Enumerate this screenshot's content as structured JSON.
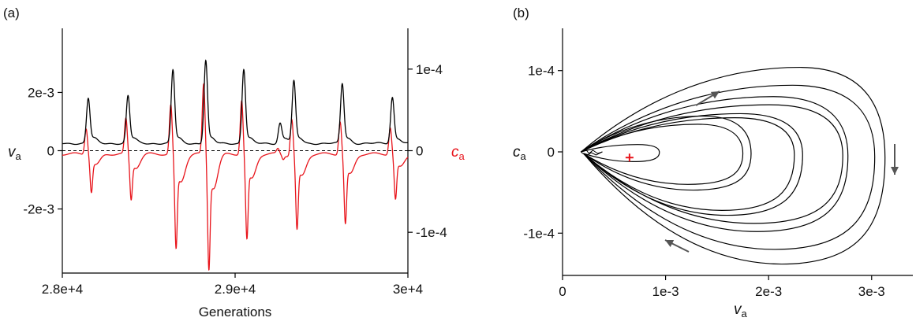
{
  "chart_data": [
    {
      "type": "line",
      "panel_label": "(a)",
      "xlabel": "Generations",
      "ylabel_left": {
        "symbol": "v",
        "subscript": "a"
      },
      "ylabel_right": {
        "symbol": "c",
        "subscript": "a"
      },
      "xlim": [
        28000,
        30000
      ],
      "ylim_left": [
        -0.0042,
        0.0042
      ],
      "ylim_right": [
        -0.00015,
        0.00015
      ],
      "x_ticks": [
        {
          "value": 28000,
          "label": "2.8e+4"
        },
        {
          "value": 29000,
          "label": "2.9e+4"
        },
        {
          "value": 30000,
          "label": "3e+4"
        }
      ],
      "y_ticks_left": [
        {
          "value": 0.002,
          "label": "2e-3"
        },
        {
          "value": 0,
          "label": "0"
        },
        {
          "value": -0.002,
          "label": "-2e-3"
        }
      ],
      "y_ticks_right": [
        {
          "value": 0.0001,
          "label": "1e-4"
        },
        {
          "value": 0,
          "label": "0"
        },
        {
          "value": -0.0001,
          "label": "-1e-4"
        }
      ],
      "zero_line": "dashed",
      "series_colors": {
        "v_a": "#000000",
        "c_a": "#e8141b"
      },
      "baseline_v": 0.00025,
      "peaks": [
        {
          "x": 28150,
          "v": 0.00175,
          "c_pos": 3.3e-05,
          "c_neg": -3.9e-05
        },
        {
          "x": 28380,
          "v": 0.00183,
          "c_pos": 4.4e-05,
          "c_neg": -4.7e-05
        },
        {
          "x": 28640,
          "v": 0.00272,
          "c_pos": 6.2e-05,
          "c_neg": -9.8e-05
        },
        {
          "x": 28830,
          "v": 0.00305,
          "c_pos": 8.8e-05,
          "c_neg": -0.000118
        },
        {
          "x": 29050,
          "v": 0.00275,
          "c_pos": 6.8e-05,
          "c_neg": -8.8e-05
        },
        {
          "x": 29260,
          "v": 0.0009,
          "c_pos": 6e-06,
          "c_neg": -5e-06
        },
        {
          "x": 29340,
          "v": 0.00232,
          "c_pos": 4.6e-05,
          "c_neg": -7.8e-05
        },
        {
          "x": 29620,
          "v": 0.00225,
          "c_pos": 4.2e-05,
          "c_neg": -7.2e-05
        },
        {
          "x": 29910,
          "v": 0.00178,
          "c_pos": 3.4e-05,
          "c_neg": -4.7e-05
        }
      ]
    },
    {
      "type": "line",
      "panel_label": "(b)",
      "xlabel": {
        "symbol": "v",
        "subscript": "a"
      },
      "ylabel": {
        "symbol": "c",
        "subscript": "a"
      },
      "xlim": [
        0,
        0.0034
      ],
      "ylim": [
        -0.000152,
        0.000152
      ],
      "x_ticks": [
        {
          "value": 0,
          "label": "0"
        },
        {
          "value": 0.001,
          "label": "1e-3"
        },
        {
          "value": 0.002,
          "label": "2e-3"
        },
        {
          "value": 0.003,
          "label": "3e-3"
        }
      ],
      "y_ticks": [
        {
          "value": 0.0001,
          "label": "1e-4"
        },
        {
          "value": 0,
          "label": "0"
        },
        {
          "value": -0.0001,
          "label": "-1e-4"
        }
      ],
      "marker": {
        "shape": "cross",
        "color": "#e8141b",
        "x": 0.00065,
        "y": -7e-06
      },
      "origin_point": {
        "x": 0.00018,
        "y": 0
      },
      "loops": [
        {
          "vmax": 0.00313,
          "cmax": 0.000104,
          "cmin": -0.000138
        },
        {
          "vmax": 0.00303,
          "cmax": 8.2e-05,
          "cmin": -0.00012
        },
        {
          "vmax": 0.00277,
          "cmax": 6.8e-05,
          "cmin": -9.8e-05
        },
        {
          "vmax": 0.00272,
          "cmax": 5.8e-05,
          "cmin": -8.8e-05
        },
        {
          "vmax": 0.00233,
          "cmax": 4.7e-05,
          "cmin": -7.8e-05
        },
        {
          "vmax": 0.00225,
          "cmax": 4.2e-05,
          "cmin": -7.2e-05
        },
        {
          "vmax": 0.00183,
          "cmax": 4.4e-05,
          "cmin": -4.7e-05
        },
        {
          "vmax": 0.00175,
          "cmax": 3.4e-05,
          "cmin": -4e-05
        },
        {
          "vmax": 0.00094,
          "cmax": 9e-06,
          "cmin": -1.2e-05
        }
      ],
      "flow_arrows": [
        {
          "position": "top",
          "direction": "right"
        },
        {
          "position": "right",
          "direction": "down"
        },
        {
          "position": "bottom",
          "direction": "left"
        }
      ]
    }
  ]
}
